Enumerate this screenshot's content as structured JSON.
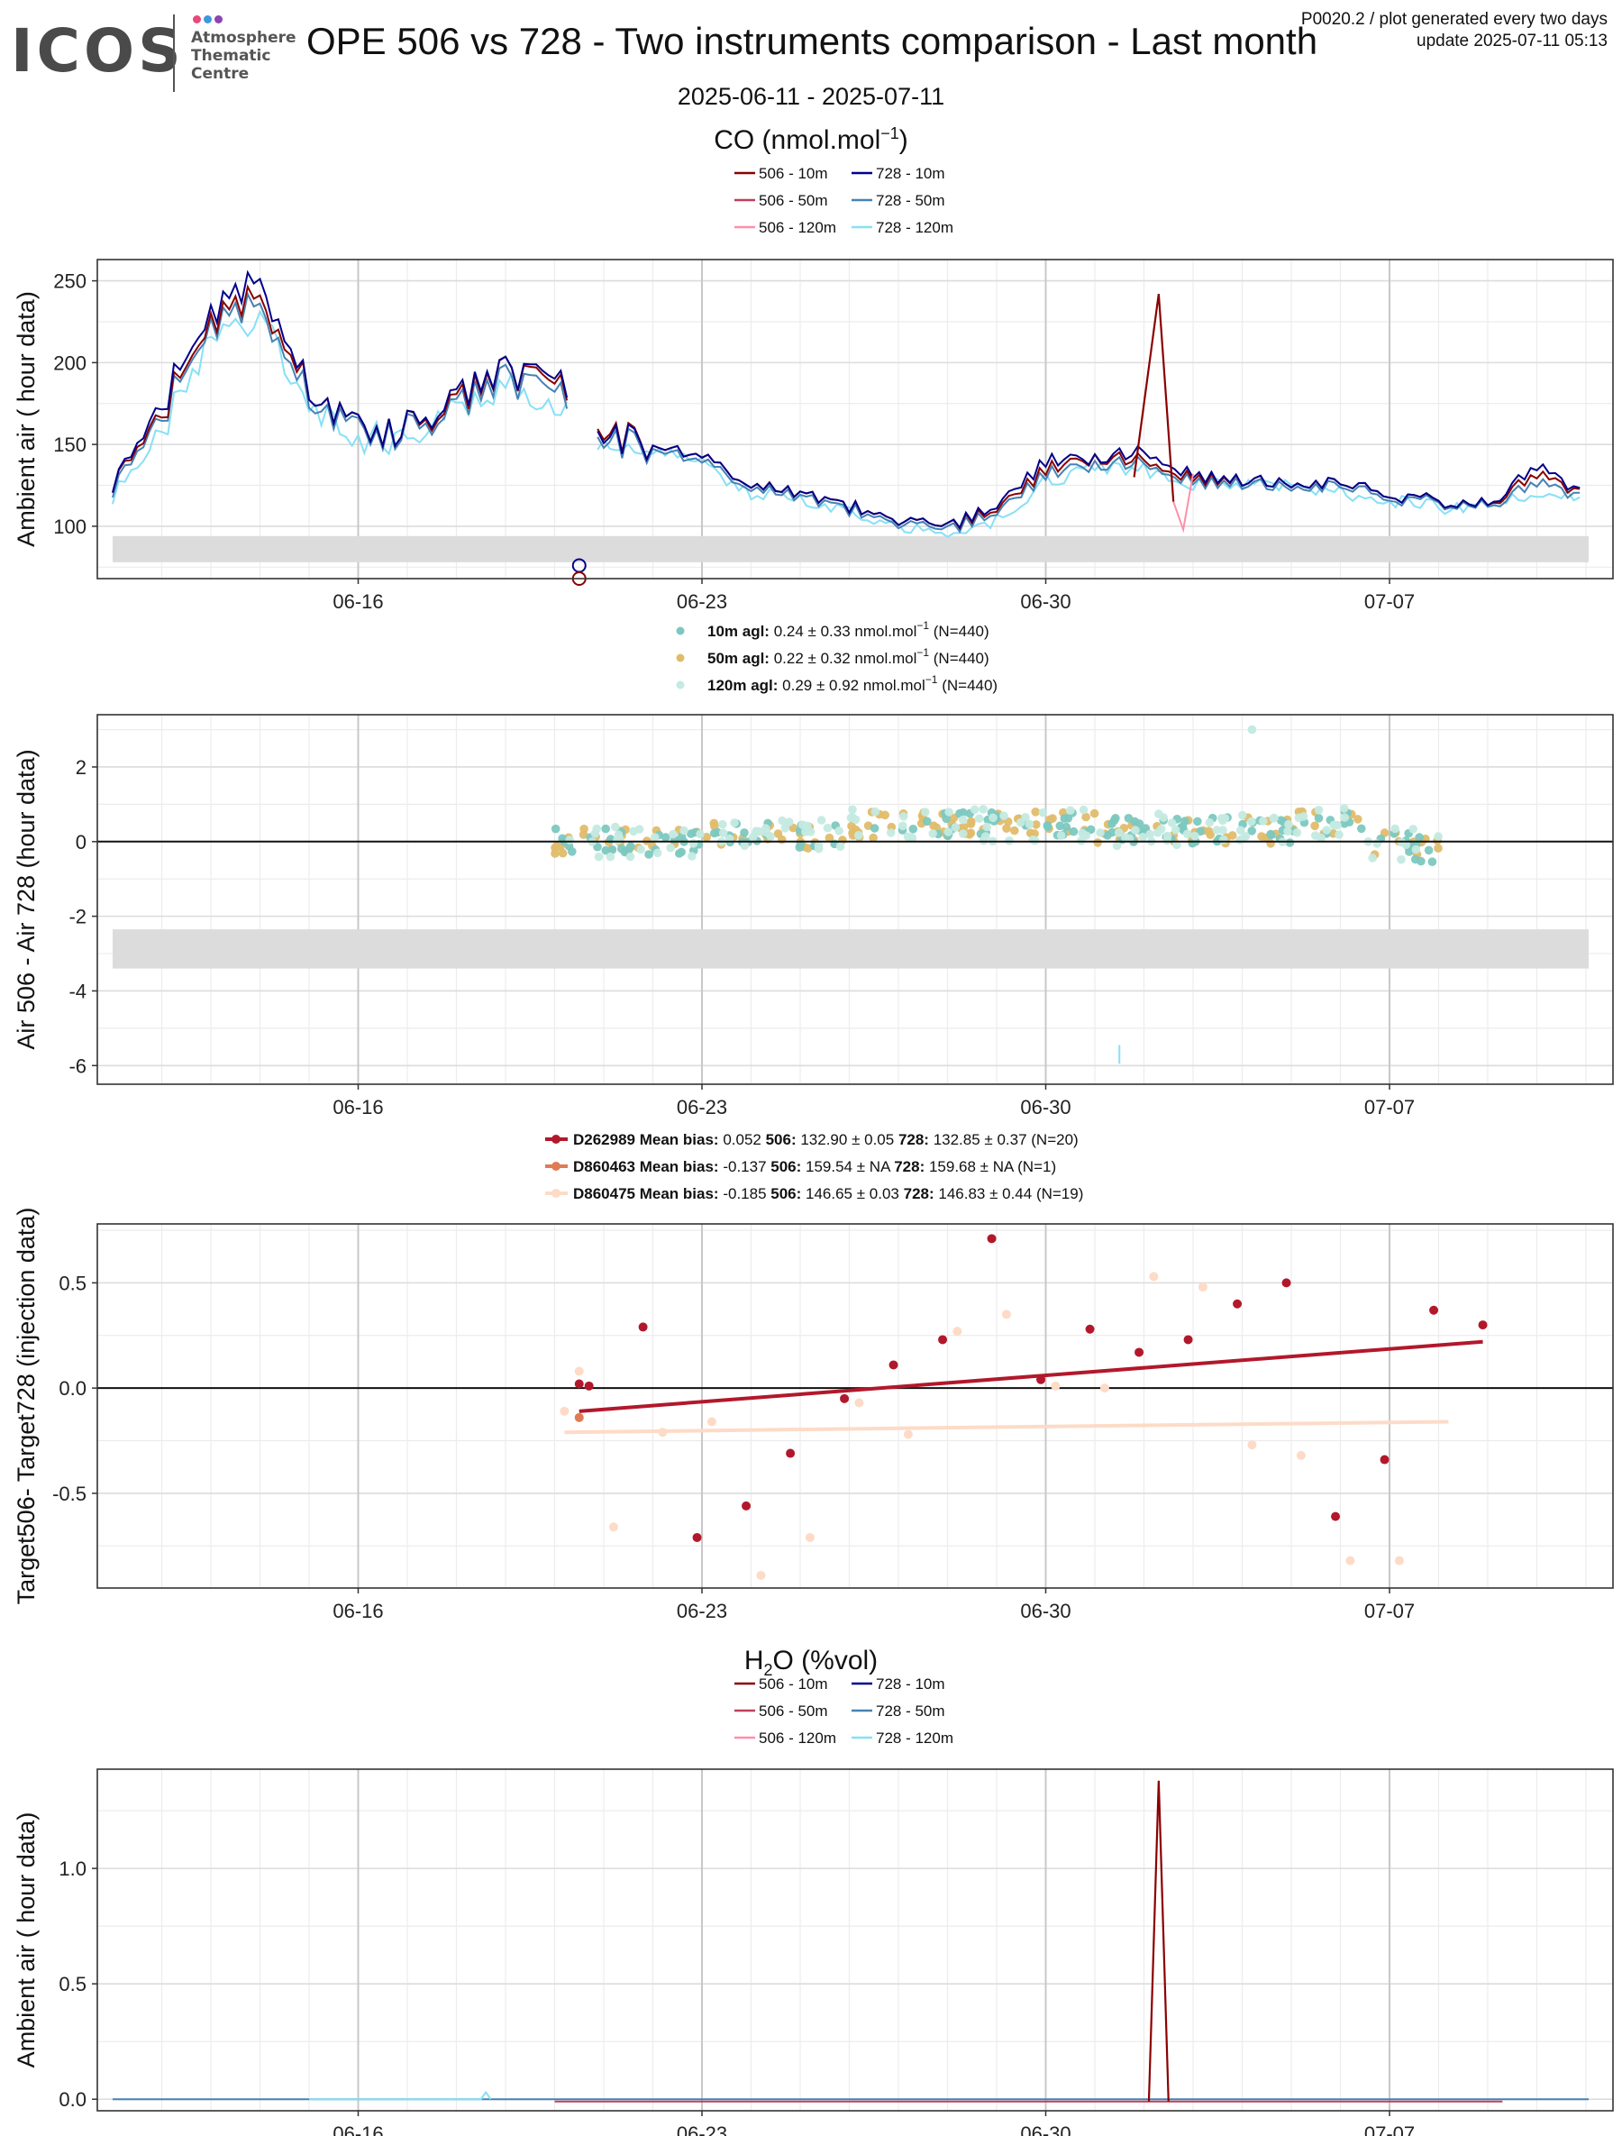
{
  "header": {
    "logo_text": "ICOS",
    "logo_sub": [
      "Atmosphere",
      "Thematic",
      "Centre"
    ],
    "title": "OPE 506 vs 728 - Two instruments comparison - Last month",
    "update_line1": "P0020.2 / plot generated every two days",
    "update_line2": "update  2025-07-11 05:13",
    "date_range": "2025-06-11 - 2025-07-11"
  },
  "colors": {
    "s506_10": "#8b0000",
    "s506_50": "#c0405a",
    "s506_120": "#ff8fab",
    "s728_10": "#00008b",
    "s728_50": "#4682b4",
    "s728_120": "#87e0f5",
    "d10": "#7cc8c0",
    "d50": "#e0bc6a",
    "d120": "#c4eae2",
    "t1": "#b2182b",
    "t2": "#e07b54",
    "t3": "#fddbc7"
  },
  "sections": {
    "co_title": "CO (nmol.mol",
    "co_title_sup": "−1",
    "co_title_end": ")",
    "h2o_title_a": "H",
    "h2o_title_sub": "2",
    "h2o_title_b": "O (%vol)"
  },
  "legends": {
    "lines": [
      "506 - 10m",
      "728 - 10m",
      "506 - 50m",
      "728 - 50m",
      "506 - 120m",
      "728 - 120m"
    ],
    "diff": [
      {
        "label": "10m agl:",
        "text": "0.24 ± 0.33 nmol.mol",
        "sup": "−1",
        "n": "(N=440)"
      },
      {
        "label": "50m agl:",
        "text": "0.22 ± 0.32 nmol.mol",
        "sup": "−1",
        "n": "(N=440)"
      },
      {
        "label": "120m agl:",
        "text": "0.29 ± 0.92 nmol.mol",
        "sup": "−1",
        "n": "(N=440)"
      }
    ],
    "target": [
      {
        "id": "D262989",
        "mb_label": "Mean bias:",
        "mb": "0.052",
        "a_label": "506:",
        "a": "132.90 ± 0.05",
        "b_label": "728:",
        "b": "132.85 ± 0.37 (N=20)"
      },
      {
        "id": "D860463",
        "mb_label": "Mean bias:",
        "mb": "-0.137",
        "a_label": "506:",
        "a": "159.54 ±  NA",
        "b_label": "728:",
        "b": "159.68 ±  NA (N=1)"
      },
      {
        "id": "D860475",
        "mb_label": "Mean bias:",
        "mb": "-0.185",
        "a_label": "506:",
        "a": "146.65 ± 0.03",
        "b_label": "728:",
        "b": "146.83 ± 0.44 (N=19)"
      }
    ]
  },
  "chart_data": [
    {
      "type": "line",
      "title": "CO (nmol.mol−1)",
      "ylabel": "Ambient air ( hour data)",
      "x_ticks": [
        "06-16",
        "06-23",
        "06-30",
        "07-07"
      ],
      "xlim": [
        "2025-06-11",
        "2025-07-11"
      ],
      "ylim": [
        68,
        263
      ],
      "y_ticks": [
        100,
        150,
        200,
        250
      ],
      "grid": true,
      "legend": "top",
      "shaded_band": [
        78,
        94
      ],
      "x_dates": [
        "06-11",
        "06-12",
        "06-13",
        "06-14",
        "06-15",
        "06-16",
        "06-17",
        "06-18",
        "06-19",
        "06-20",
        "06-21",
        "06-22",
        "06-23",
        "06-24",
        "06-25",
        "06-26",
        "06-27",
        "06-28",
        "06-29",
        "06-30",
        "07-01",
        "07-02",
        "07-03",
        "07-04",
        "07-05",
        "07-06",
        "07-07",
        "07-08",
        "07-09",
        "07-10",
        "07-11"
      ],
      "series": [
        {
          "name": "506 - 10m",
          "values": [
            125,
            170,
            225,
            240,
            185,
            160,
            160,
            175,
            195,
            185,
            160,
            150,
            145,
            125,
            120,
            112,
            105,
            100,
            110,
            135,
            142,
            140,
            130,
            128,
            128,
            125,
            120,
            115,
            114,
            130,
            122
          ]
        },
        {
          "name": "728 - 10m",
          "values": [
            125,
            175,
            230,
            250,
            185,
            160,
            160,
            178,
            195,
            188,
            158,
            150,
            145,
            125,
            120,
            112,
            105,
            100,
            112,
            140,
            142,
            145,
            132,
            128,
            128,
            125,
            120,
            115,
            114,
            135,
            122
          ]
        },
        {
          "name": "728 - 50m",
          "values": [
            122,
            168,
            222,
            235,
            180,
            158,
            158,
            172,
            190,
            180,
            155,
            148,
            142,
            123,
            118,
            110,
            103,
            98,
            108,
            132,
            138,
            138,
            128,
            126,
            126,
            123,
            118,
            114,
            113,
            125,
            120
          ]
        },
        {
          "name": "728 - 120m",
          "values": [
            118,
            160,
            215,
            225,
            175,
            155,
            155,
            168,
            185,
            175,
            150,
            145,
            138,
            120,
            116,
            108,
            100,
            96,
            104,
            128,
            135,
            135,
            126,
            124,
            124,
            121,
            116,
            112,
            112,
            120,
            118
          ]
        }
      ],
      "markers": [
        {
          "series": "728 - 10m",
          "x": "06-20.5",
          "y": 76
        },
        {
          "series": "506 - 10m",
          "x": "06-20.5",
          "y": 68
        }
      ],
      "spike": {
        "series": "506 - 10m",
        "x": "07-01.3",
        "y": 242
      }
    },
    {
      "type": "scatter",
      "ylabel": "Air 506 - Air 728 (hour data)",
      "x_ticks": [
        "06-16",
        "06-23",
        "06-30",
        "07-07"
      ],
      "xlim": [
        "2025-06-11",
        "2025-07-11"
      ],
      "ylim": [
        -6.5,
        3.4
      ],
      "y_ticks": [
        -6,
        -4,
        -2,
        0,
        2
      ],
      "shaded_band": [
        -3.4,
        -2.35
      ],
      "series": [
        {
          "name": "10m agl",
          "mean": 0.24,
          "sd": 0.33,
          "n": 440,
          "x_range": [
            "06-20",
            "07-08"
          ]
        },
        {
          "name": "50m agl",
          "mean": 0.22,
          "sd": 0.32,
          "n": 440,
          "x_range": [
            "06-20",
            "07-08"
          ]
        },
        {
          "name": "120m agl",
          "mean": 0.29,
          "sd": 0.92,
          "n": 440,
          "x_range": [
            "06-20",
            "07-08"
          ]
        }
      ],
      "outliers": [
        {
          "series": "120m agl",
          "x": "07-04.2",
          "y": 3.0
        },
        {
          "series": "120m agl",
          "x": "07-01.5",
          "y": -5.7
        }
      ]
    },
    {
      "type": "scatter",
      "ylabel": "Target506- Target728 (injection data)",
      "x_ticks": [
        "06-16",
        "06-23",
        "06-30",
        "07-07"
      ],
      "xlim": [
        "2025-06-11",
        "2025-07-11"
      ],
      "ylim": [
        -0.95,
        0.78
      ],
      "y_ticks": [
        -0.5,
        0.0,
        0.5
      ],
      "series": [
        {
          "name": "D262989",
          "points": [
            [
              20.5,
              0.02
            ],
            [
              20.7,
              0.01
            ],
            [
              21.8,
              0.29
            ],
            [
              22.9,
              -0.71
            ],
            [
              23.9,
              -0.56
            ],
            [
              24.8,
              -0.31
            ],
            [
              25.9,
              -0.05
            ],
            [
              26.9,
              0.11
            ],
            [
              27.9,
              0.23
            ],
            [
              28.9,
              0.71
            ],
            [
              29.9,
              0.04
            ],
            [
              30.9,
              0.28
            ],
            [
              31.9,
              0.17
            ],
            [
              32.9,
              0.23
            ],
            [
              33.9,
              0.4
            ],
            [
              34.9,
              0.5
            ],
            [
              35.9,
              -0.61
            ],
            [
              36.9,
              -0.34
            ],
            [
              37.9,
              0.37
            ],
            [
              38.9,
              0.3
            ]
          ],
          "fit": [
            [
              20.5,
              -0.11
            ],
            [
              38.9,
              0.22
            ]
          ]
        },
        {
          "name": "D860463",
          "points": [
            [
              20.5,
              -0.14
            ]
          ]
        },
        {
          "name": "D860475",
          "points": [
            [
              20.2,
              -0.11
            ],
            [
              20.5,
              0.08
            ],
            [
              21.2,
              -0.66
            ],
            [
              22.2,
              -0.21
            ],
            [
              23.2,
              -0.16
            ],
            [
              24.2,
              -0.89
            ],
            [
              25.2,
              -0.71
            ],
            [
              26.2,
              -0.07
            ],
            [
              27.2,
              -0.22
            ],
            [
              28.2,
              0.27
            ],
            [
              29.2,
              0.35
            ],
            [
              30.2,
              0.01
            ],
            [
              31.2,
              0.0
            ],
            [
              32.2,
              0.53
            ],
            [
              33.2,
              0.48
            ],
            [
              34.2,
              -0.27
            ],
            [
              35.2,
              -0.32
            ],
            [
              36.2,
              -0.82
            ],
            [
              37.2,
              -0.82
            ]
          ],
          "fit": [
            [
              20.2,
              -0.21
            ],
            [
              38.2,
              -0.16
            ]
          ]
        }
      ]
    },
    {
      "type": "line",
      "title": "H2O (%vol)",
      "ylabel": "Ambient air ( hour data)",
      "x_ticks": [
        "06-16",
        "06-23",
        "06-30",
        "07-07"
      ],
      "xlim": [
        "2025-06-11",
        "2025-07-11"
      ],
      "ylim": [
        -0.05,
        1.43
      ],
      "y_ticks": [
        0.0,
        0.5,
        1.0
      ],
      "series": [
        {
          "name": "506 - 10m",
          "baseline": -0.01,
          "spike": {
            "x": "07-01.3",
            "y": 1.38
          }
        },
        {
          "name": "728 - 50m",
          "baseline": 0.0
        },
        {
          "name": "728 - 120m",
          "baseline": 0.0,
          "blip": {
            "x": "06-18.5",
            "y": 0.03
          }
        }
      ]
    }
  ]
}
